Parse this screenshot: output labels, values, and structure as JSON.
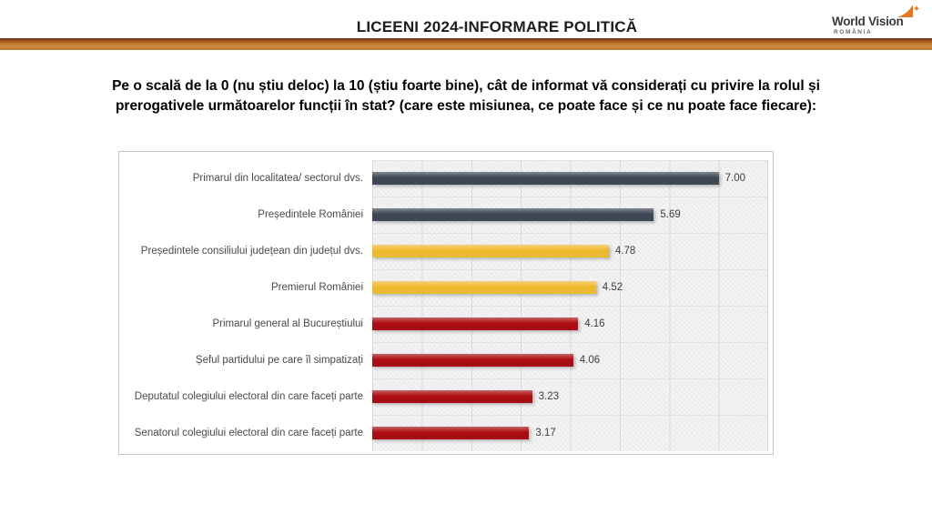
{
  "header": {
    "title": "LICEENI 2024-INFORMARE POLITICĂ",
    "logo": {
      "name": "World Vision",
      "region": "ROMÂNIA",
      "accent_color": "#e8761e"
    }
  },
  "question": {
    "line1": "Pe o scală de la 0 (nu știu deloc) la 10 (știu foarte bine), cât de informat vă considerați cu privire la rolul și",
    "line2": "prerogativele următoarelor funcții în stat? (care este misiunea, ce poate face și ce nu poate face fiecare):"
  },
  "chart_data": {
    "type": "bar",
    "orientation": "horizontal",
    "title": "",
    "xlabel": "",
    "ylabel": "",
    "xlim": [
      0,
      8
    ],
    "grid": true,
    "categories": [
      "Primarul din localitatea/ sectorul dvs.",
      "Președintele României",
      "Președintele consiliului județean din județul dvs.",
      "Premierul României",
      "Primarul general al Bucureștiului",
      "Șeful partidului pe care îl simpatizați",
      "Deputatul colegiului electoral din care faceți parte",
      "Senatorul colegiului electoral din care faceți parte"
    ],
    "values": [
      7.0,
      5.69,
      4.78,
      4.52,
      4.16,
      4.06,
      3.23,
      3.17
    ],
    "value_labels": [
      "7.00",
      "5.69",
      "4.78",
      "4.52",
      "4.16",
      "4.06",
      "3.23",
      "3.17"
    ],
    "bar_colors": [
      "#3f4656",
      "#3f4656",
      "#edb92e",
      "#edb92e",
      "#a90d12",
      "#a90d12",
      "#a90d12",
      "#a90d12"
    ]
  },
  "colors": {
    "divider_orange": "#c1762e",
    "slate": "#3f4656",
    "yellow": "#edb92e",
    "red": "#a90d12",
    "plot_bg": "#efeff0"
  }
}
